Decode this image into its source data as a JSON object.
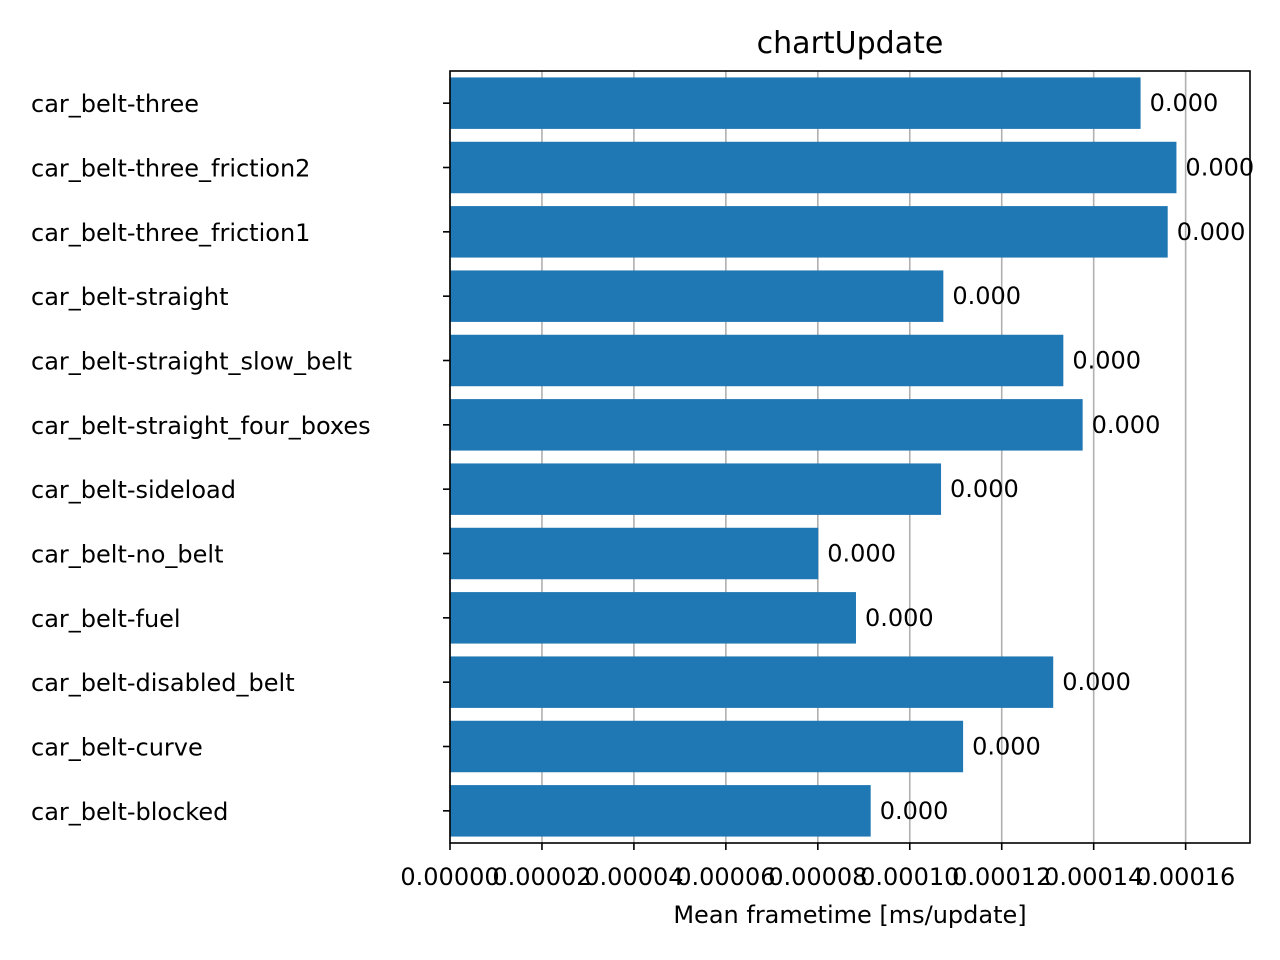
{
  "chart_data": {
    "type": "bar",
    "orientation": "horizontal",
    "title": "chartUpdate",
    "xlabel": "Mean frametime [ms/update]",
    "ylabel": "",
    "xlim": [
      0,
      0.000174
    ],
    "xticks": [
      0,
      2e-05,
      4e-05,
      6e-05,
      8e-05,
      0.0001,
      0.00012,
      0.00014,
      0.00016
    ],
    "xtick_labels": [
      "0.00000",
      "0.00002",
      "0.00004",
      "0.00006",
      "0.00008",
      "0.00010",
      "0.00012",
      "0.00014",
      "0.00016"
    ],
    "grid": "x",
    "bar_color": "#1f77b4",
    "categories": [
      "car_belt-three",
      "car_belt-three_friction2",
      "car_belt-three_friction1",
      "car_belt-straight",
      "car_belt-straight_slow_belt",
      "car_belt-straight_four_boxes",
      "car_belt-sideload",
      "car_belt-no_belt",
      "car_belt-fuel",
      "car_belt-disabled_belt",
      "car_belt-curve",
      "car_belt-blocked"
    ],
    "values": [
      0.0001502,
      0.000158,
      0.0001561,
      0.0001073,
      0.0001334,
      0.0001376,
      0.0001068,
      8.01e-05,
      8.83e-05,
      0.0001312,
      0.0001116,
      9.15e-05
    ],
    "data_labels": [
      "0.000",
      "0.000",
      "0.000",
      "0.000",
      "0.000",
      "0.000",
      "0.000",
      "0.000",
      "0.000",
      "0.000",
      "0.000",
      "0.000"
    ]
  }
}
